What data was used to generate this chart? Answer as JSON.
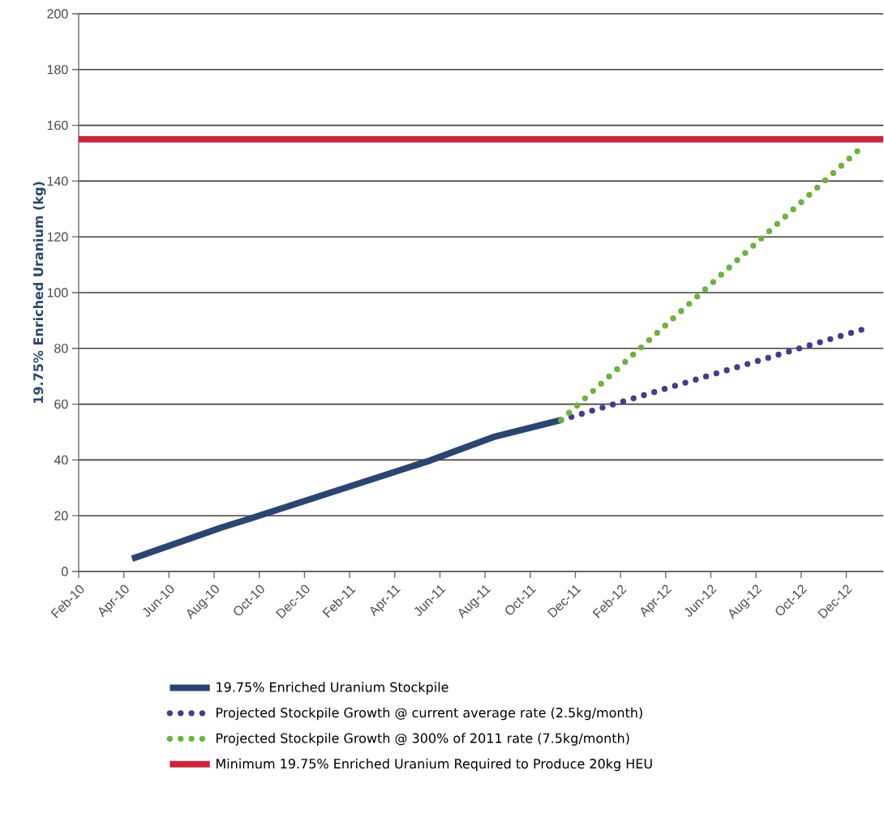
{
  "chart_data": {
    "type": "line",
    "ylabel": "19.75% Enriched Uranium (kg)",
    "series": [
      {
        "name": "19.75% Enriched Uranium Stockpile",
        "color": "#2b466e",
        "line_style": "solid",
        "x": [
          "2010-04-12",
          "2010-08-10",
          "2010-09-18",
          "2011-05-18",
          "2011-08-12",
          "2011-11-12"
        ],
        "values": [
          4.6,
          15.7,
          18.9,
          39.8,
          48.2,
          54.3
        ]
      },
      {
        "name": "Projected Stockpile Growth @ current average rate (2.5kg/month)",
        "color": "#443c8a",
        "line_style": "dotted",
        "x": [
          "2011-11-12",
          "2012-12-25"
        ],
        "values": [
          54.3,
          87
        ]
      },
      {
        "name": "Projected Stockpile Growth @ 300% of 2011 rate (7.5kg/month)",
        "color": "#6cb33f",
        "line_style": "dotted",
        "x": [
          "2011-11-12",
          "2012-12-25"
        ],
        "values": [
          54.3,
          153
        ]
      }
    ],
    "ref_lines": [
      {
        "axis": "y",
        "value": 155,
        "label": "Minimum 19.75% Enriched Uranium Required to Produce 20kg HEU",
        "color": "#c8243a",
        "line_style": "solid"
      }
    ],
    "xlim": [
      "2010-02-01",
      "2013-01-20"
    ],
    "xticks": [
      {
        "value": "2010-02",
        "label": "Feb-10"
      },
      {
        "value": "2010-04",
        "label": "Apr-10"
      },
      {
        "value": "2010-06",
        "label": "Jun-10"
      },
      {
        "value": "2010-08",
        "label": "Aug-10"
      },
      {
        "value": "2010-10",
        "label": "Oct-10"
      },
      {
        "value": "2010-12",
        "label": "Dec-10"
      },
      {
        "value": "2011-02",
        "label": "Feb-11"
      },
      {
        "value": "2011-04",
        "label": "Apr-11"
      },
      {
        "value": "2011-06",
        "label": "Jun-11"
      },
      {
        "value": "2011-08",
        "label": "Aug-11"
      },
      {
        "value": "2011-10",
        "label": "Oct-11"
      },
      {
        "value": "2011-12",
        "label": "Dec-11"
      },
      {
        "value": "2012-02",
        "label": "Feb-12"
      },
      {
        "value": "2012-04",
        "label": "Apr-12"
      },
      {
        "value": "2012-06",
        "label": "Jun-12"
      },
      {
        "value": "2012-08",
        "label": "Aug-12"
      },
      {
        "value": "2012-10",
        "label": "Oct-12"
      },
      {
        "value": "2012-12",
        "label": "Dec-12"
      }
    ],
    "ylim": [
      0,
      200
    ],
    "yticks": [
      0,
      20,
      40,
      60,
      80,
      100,
      120,
      140,
      160,
      180,
      200
    ],
    "grid": "y",
    "legend": "bottom",
    "marker": "none"
  }
}
